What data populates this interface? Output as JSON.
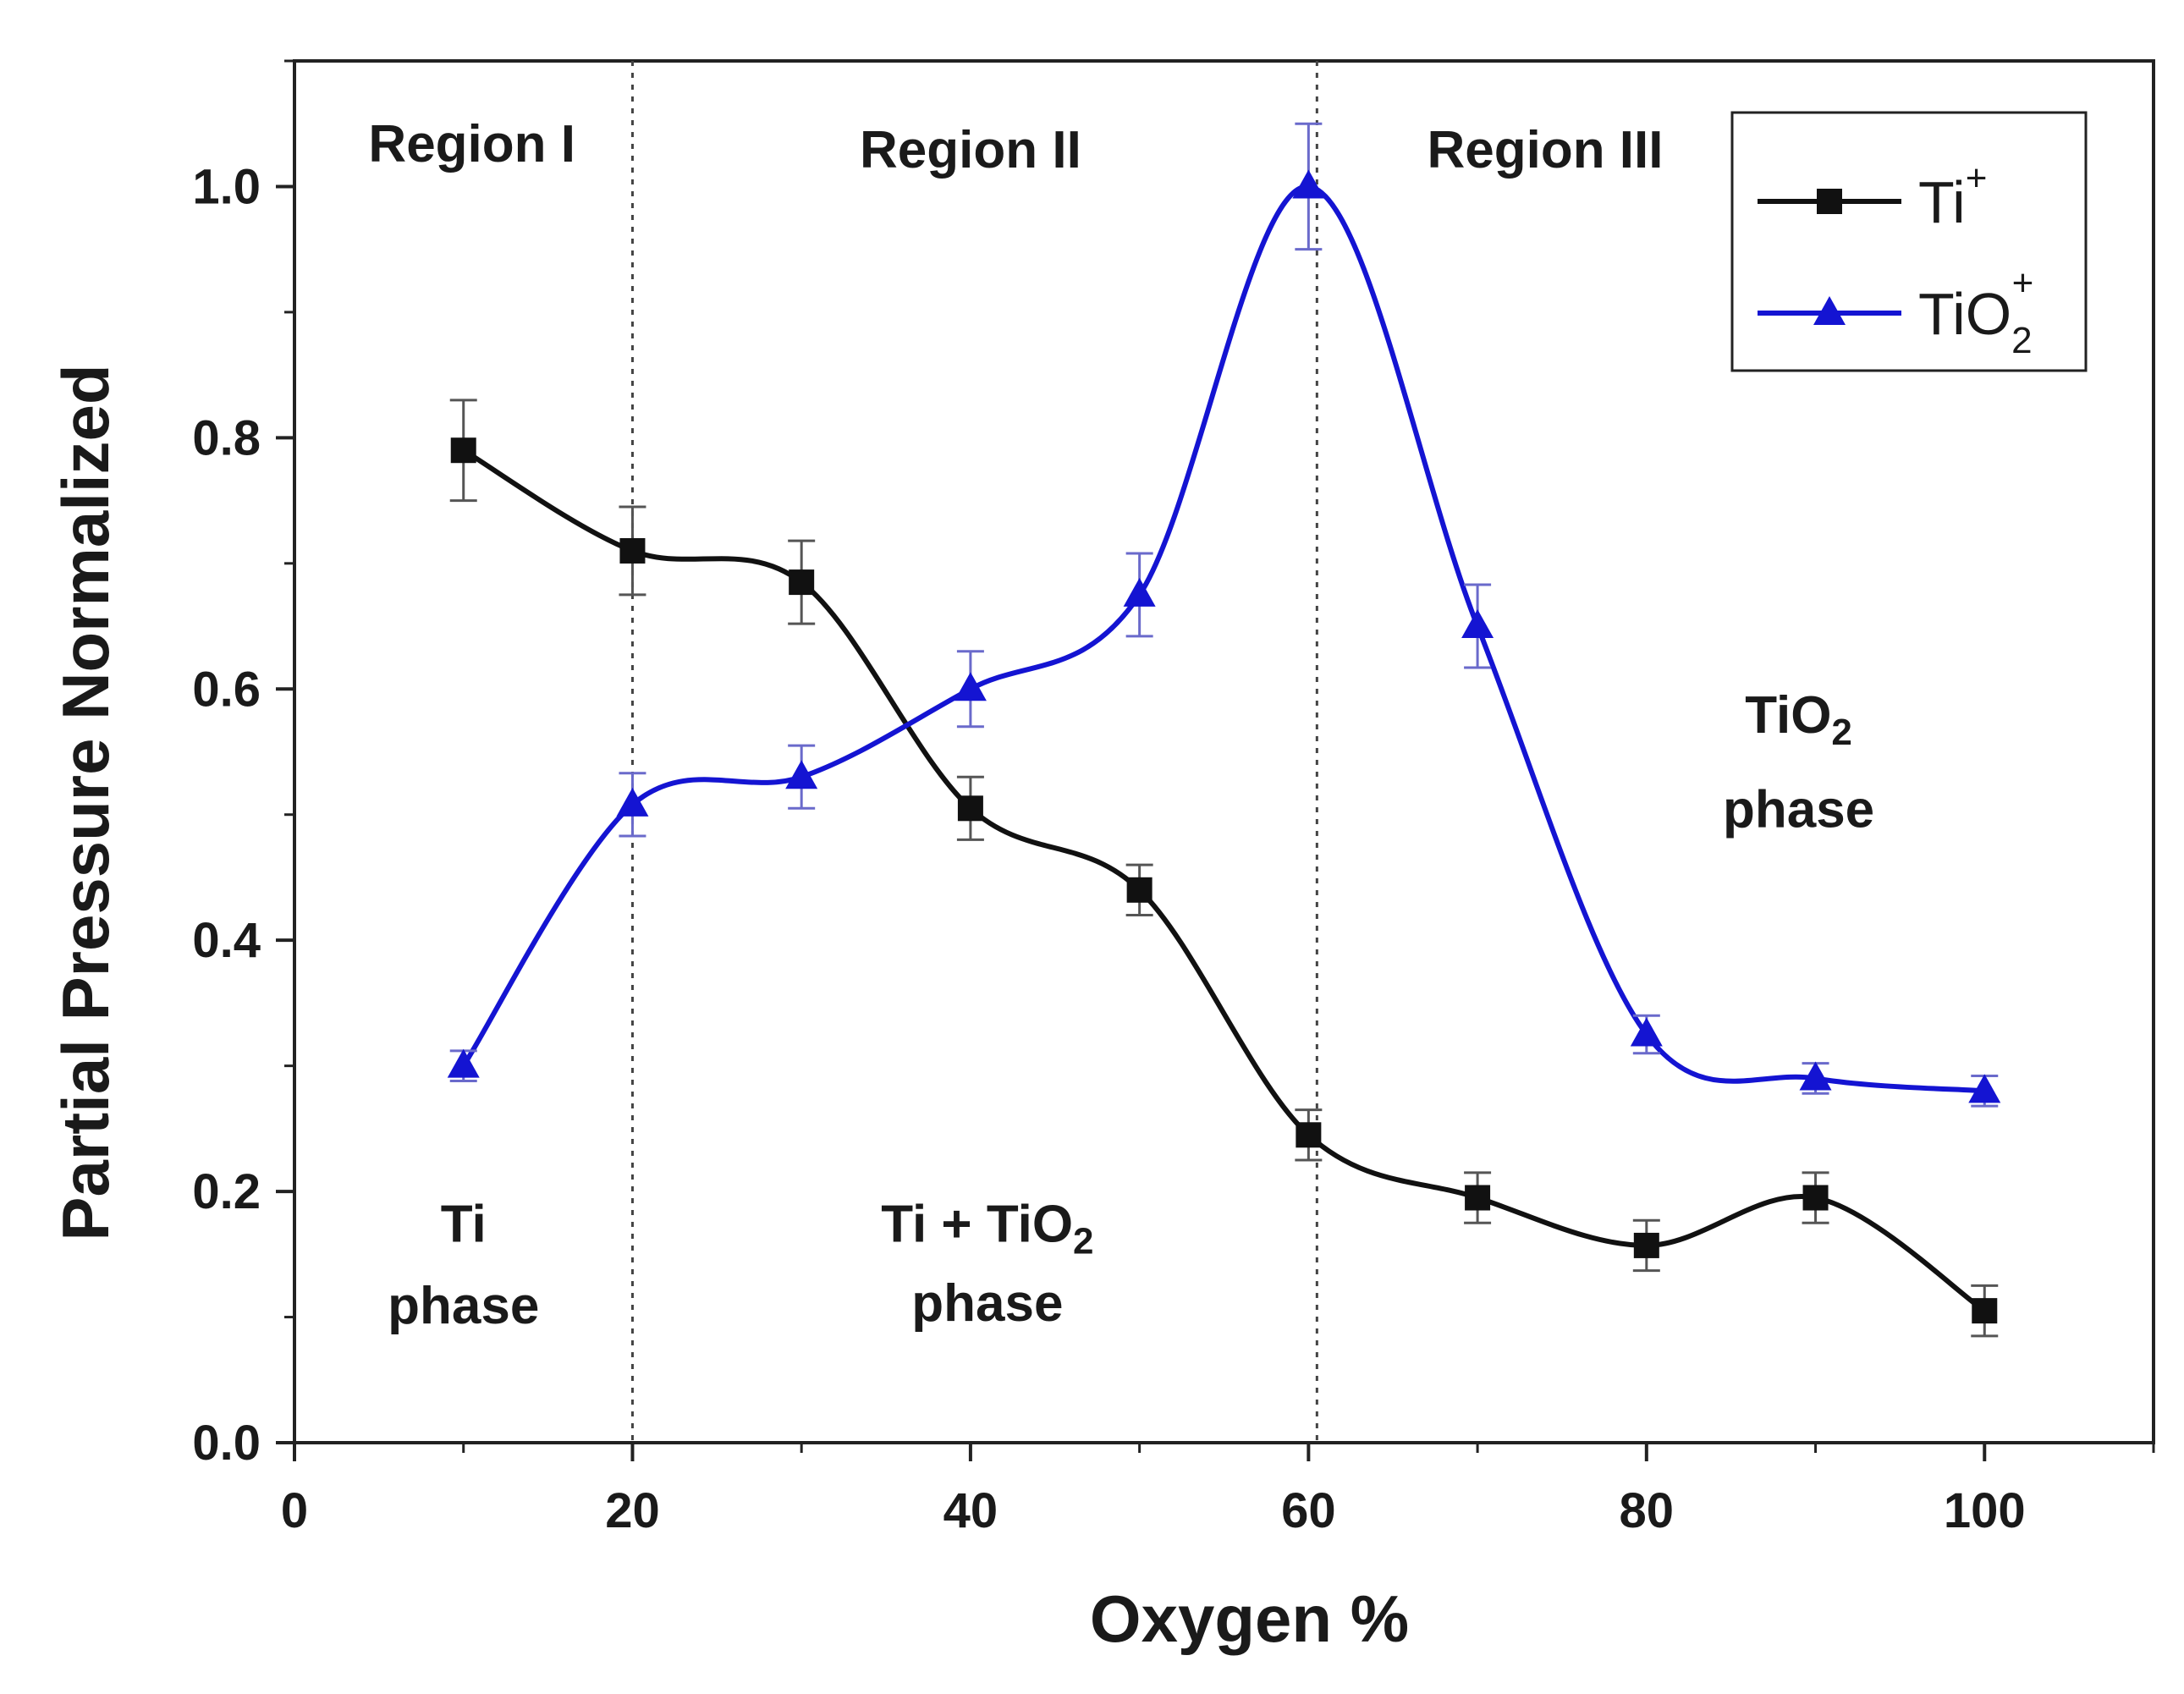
{
  "chart_data": {
    "type": "line",
    "xlabel": "Oxygen %",
    "ylabel": "Partial Pressure Normalized",
    "xlim": [
      0,
      110
    ],
    "ylim": [
      0,
      1.1
    ],
    "x_ticks": [
      "0",
      "20",
      "40",
      "60",
      "80",
      "100"
    ],
    "y_ticks": [
      "0.0",
      "0.2",
      "0.4",
      "0.6",
      "0.8",
      "1.0"
    ],
    "x_tick_values": [
      0,
      20,
      40,
      60,
      80,
      100
    ],
    "y_tick_values": [
      0,
      0.2,
      0.4,
      0.6,
      0.8,
      1.0
    ],
    "grid": false,
    "legend_position": "top-right",
    "divider_x": [
      20,
      60.5
    ],
    "series": [
      {
        "name": "Ti+",
        "legend_base": "Ti",
        "legend_sup": "+",
        "legend_sub": "",
        "color": "#111111",
        "marker": "square",
        "x": [
          10,
          20,
          30,
          40,
          50,
          60,
          70,
          80,
          90,
          100
        ],
        "values": [
          0.79,
          0.71,
          0.685,
          0.505,
          0.44,
          0.245,
          0.195,
          0.157,
          0.195,
          0.105
        ],
        "errors": [
          0.04,
          0.035,
          0.033,
          0.025,
          0.02,
          0.02,
          0.02,
          0.02,
          0.02,
          0.02
        ]
      },
      {
        "name": "TiO2+",
        "legend_base": "TiO",
        "legend_sup": "+",
        "legend_sub": "2",
        "color": "#1414d2",
        "marker": "triangle",
        "x": [
          10,
          20,
          30,
          40,
          50,
          60,
          70,
          80,
          90,
          100
        ],
        "values": [
          0.3,
          0.508,
          0.53,
          0.6,
          0.675,
          1.0,
          0.65,
          0.325,
          0.29,
          0.28
        ],
        "errors": [
          0.012,
          0.025,
          0.025,
          0.03,
          0.033,
          0.05,
          0.033,
          0.015,
          0.012,
          0.012
        ]
      }
    ],
    "annotations": {
      "regions": [
        {
          "label": "Region I",
          "x": 10.5,
          "y": 1.02
        },
        {
          "label": "Region II",
          "x": 40,
          "y": 1.015
        },
        {
          "label": "Region III",
          "x": 74,
          "y": 1.015
        }
      ],
      "phases": [
        {
          "line1_base": "Ti",
          "line1_sub": "",
          "line1_suffix": "",
          "line2": "phase",
          "x": 10,
          "y1": 0.16,
          "y2": 0.095
        },
        {
          "line1_base": "Ti + TiO",
          "line1_sub": "2",
          "line1_suffix": "",
          "line2": "phase",
          "x": 41,
          "y1": 0.16,
          "y2": 0.097
        },
        {
          "line1_base": "TiO",
          "line1_sub": "2",
          "line1_suffix": "",
          "line2": "phase",
          "x": 89,
          "y1": 0.565,
          "y2": 0.49
        }
      ]
    }
  }
}
